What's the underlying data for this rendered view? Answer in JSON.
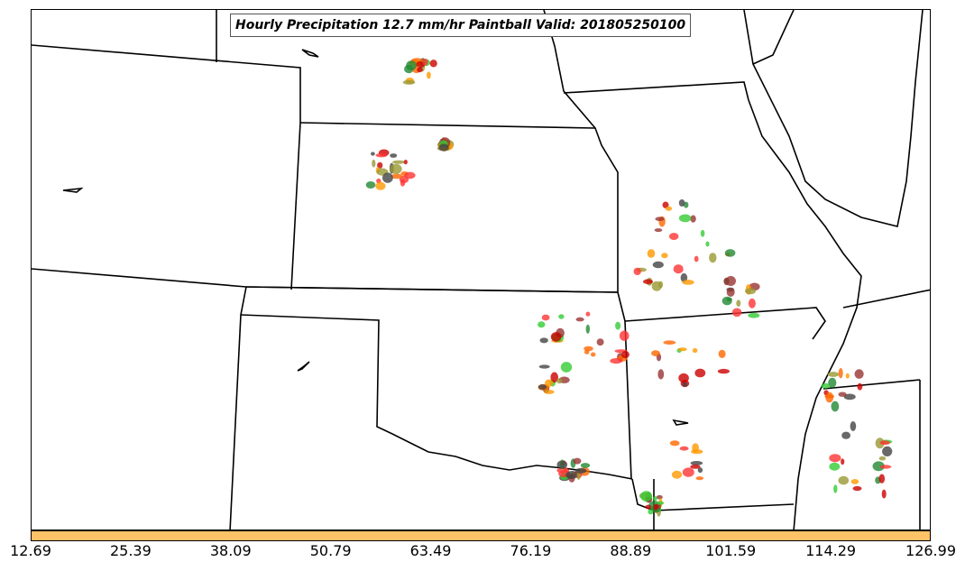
{
  "title": "Hourly Precipitation 12.7 mm/hr Paintball Valid: 201805250100",
  "colorbar": {
    "color": "#ffc266",
    "tick_labels": [
      "12.69",
      "25.39",
      "38.09",
      "50.79",
      "63.49",
      "76.19",
      "88.89",
      "101.59",
      "114.29",
      "126.99"
    ]
  },
  "paintball_colors": [
    "#ff3333",
    "#33cc33",
    "#ff9900",
    "#999933",
    "#444444",
    "#993333",
    "#cc0000",
    "#ff6600",
    "#228833"
  ]
}
